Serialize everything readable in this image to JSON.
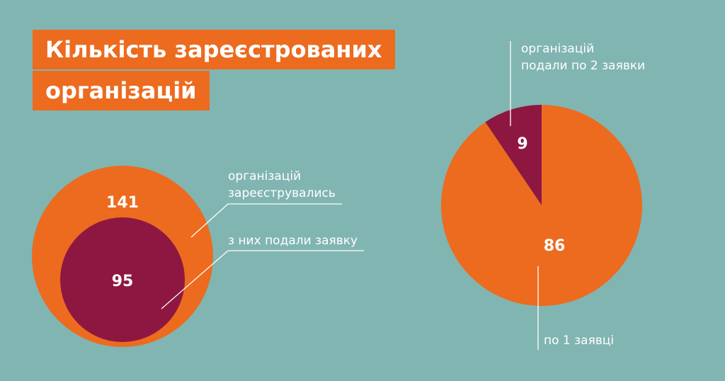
{
  "title": {
    "line1": "Кількість зареєстрованих",
    "line2": "організацій"
  },
  "colors": {
    "background": "#81b5b2",
    "orange": "#ec6b1f",
    "crimson": "#8e1741",
    "text": "#ffffff"
  },
  "chart_data": [
    {
      "type": "nested-circles",
      "series": [
        {
          "value": 141,
          "label_line1": "організацій",
          "label_line2": "зареєструвались",
          "color": "#ec6b1f"
        },
        {
          "value": 95,
          "label": "з них подали заявку",
          "color": "#8e1741"
        }
      ]
    },
    {
      "type": "pie",
      "slices": [
        {
          "value": 9,
          "label_line1": "організацій",
          "label_line2": "подали по 2 заявки",
          "color": "#8e1741"
        },
        {
          "value": 86,
          "label": "по 1 заявці",
          "color": "#ec6b1f"
        }
      ]
    }
  ]
}
